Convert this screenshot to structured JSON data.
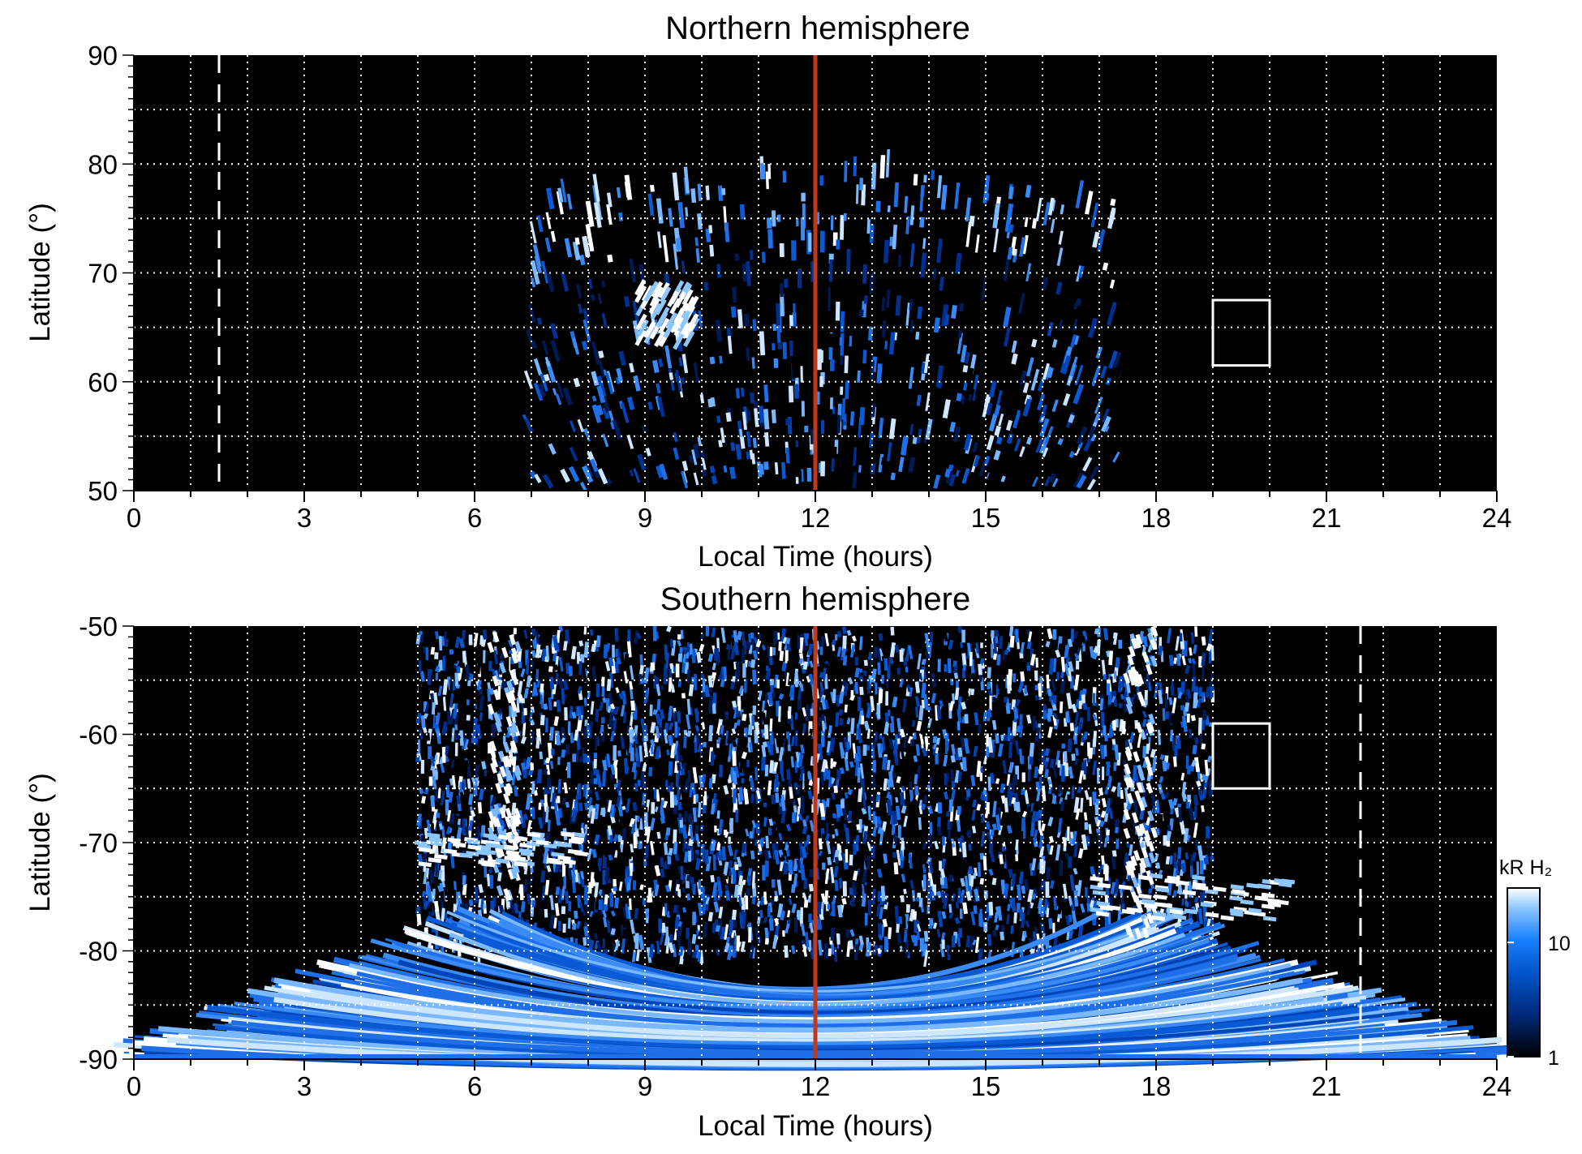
{
  "chart_data": [
    {
      "type": "heatmap",
      "title": "Northern hemisphere",
      "xlabel": "Local Time (hours)",
      "ylabel": "Latitude (°)",
      "xlim": [
        0,
        24
      ],
      "ylim": [
        50,
        90
      ],
      "xticks": [
        "0",
        "3",
        "6",
        "9",
        "12",
        "15",
        "18",
        "21",
        "24"
      ],
      "yticks": [
        "50",
        "60",
        "70",
        "80",
        "90"
      ],
      "grid": "dotted white",
      "background": "#000000",
      "emission": {
        "lt_range": [
          7,
          17.3
        ],
        "max_latitude_at_noon": 79,
        "main_oval": {
          "lat_range": [
            65,
            78
          ],
          "lt_range": [
            7.5,
            16.5
          ]
        },
        "bright_spot": {
          "lt": [
            8.8,
            9.8
          ],
          "lat": [
            63,
            68
          ]
        }
      },
      "annotations": {
        "noon_line": {
          "lt": 12,
          "color": "#c0391b"
        },
        "dashed_line": {
          "lt": 1.5,
          "color": "#ffffff"
        },
        "box": {
          "lt": [
            19,
            20
          ],
          "lat": [
            61.5,
            67.5
          ],
          "color": "#ffffff"
        }
      }
    },
    {
      "type": "heatmap",
      "title": "Southern hemisphere",
      "xlabel": "Local Time (hours)",
      "ylabel": "Latitude (°)",
      "xlim": [
        0,
        24
      ],
      "ylim": [
        -90,
        -50
      ],
      "xticks": [
        "0",
        "3",
        "6",
        "9",
        "12",
        "15",
        "18",
        "21",
        "24"
      ],
      "yticks": [
        "-90",
        "-80",
        "-70",
        "-60",
        "-50"
      ],
      "grid": "dotted white",
      "background": "#000000",
      "emission": {
        "lt_range": [
          0,
          24
        ],
        "bright_bands": [
          {
            "lt": 6.5,
            "lat": [
              -75,
              -50
            ]
          },
          {
            "lt": 17.7,
            "lat": [
              -78,
              -50
            ]
          }
        ],
        "bright_arcs": [
          {
            "lt": [
              4.8,
              7.8
            ],
            "lat": [
              -72,
              -69
            ]
          },
          {
            "lt": [
              16.8,
              20.3
            ],
            "lat": [
              -77,
              -73
            ]
          }
        ]
      },
      "annotations": {
        "noon_line": {
          "lt": 12,
          "color": "#c0391b"
        },
        "dashed_line": {
          "lt": 21.6,
          "color": "#ffffff"
        },
        "box": {
          "lt": [
            19,
            20
          ],
          "lat": [
            -65,
            -59
          ],
          "color": "#ffffff"
        }
      },
      "colorbar": {
        "label": "kR H₂",
        "scale": "log",
        "range": [
          1,
          30
        ],
        "ticks": [
          "1",
          "10"
        ],
        "colors": [
          "#000000",
          "#002a7a",
          "#0055cc",
          "#1a82ff",
          "#8cc6ff",
          "#ffffff"
        ]
      }
    }
  ]
}
